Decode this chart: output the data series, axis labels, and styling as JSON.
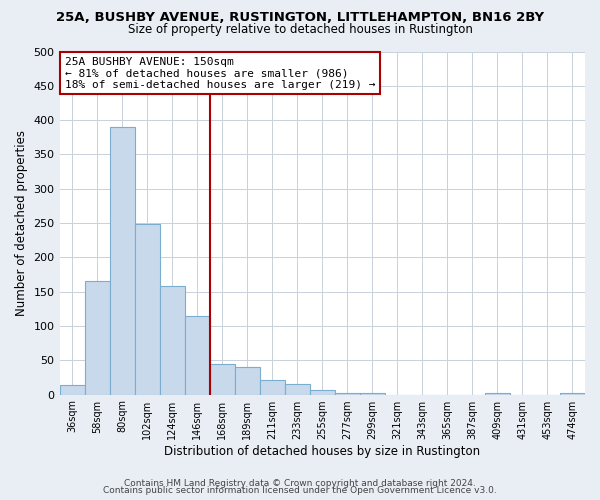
{
  "title": "25A, BUSHBY AVENUE, RUSTINGTON, LITTLEHAMPTON, BN16 2BY",
  "subtitle": "Size of property relative to detached houses in Rustington",
  "xlabel": "Distribution of detached houses by size in Rustington",
  "ylabel": "Number of detached properties",
  "bar_labels": [
    "36sqm",
    "58sqm",
    "80sqm",
    "102sqm",
    "124sqm",
    "146sqm",
    "168sqm",
    "189sqm",
    "211sqm",
    "233sqm",
    "255sqm",
    "277sqm",
    "299sqm",
    "321sqm",
    "343sqm",
    "365sqm",
    "387sqm",
    "409sqm",
    "431sqm",
    "453sqm",
    "474sqm"
  ],
  "bar_values": [
    14,
    165,
    390,
    248,
    158,
    115,
    45,
    40,
    21,
    16,
    7,
    3,
    2,
    0,
    0,
    0,
    0,
    2,
    0,
    0,
    2
  ],
  "bar_fill_color": "#c8d9ec",
  "bar_edge_color": "#7aadce",
  "ylim": [
    0,
    500
  ],
  "yticks": [
    0,
    50,
    100,
    150,
    200,
    250,
    300,
    350,
    400,
    450,
    500
  ],
  "vline_x": 5.5,
  "annotation_text_line1": "25A BUSHBY AVENUE: 150sqm",
  "annotation_text_line2": "← 81% of detached houses are smaller (986)",
  "annotation_text_line3": "18% of semi-detached houses are larger (219) →",
  "vline_color": "#aa0000",
  "annotation_box_edge_color": "#aa0000",
  "footer_line1": "Contains HM Land Registry data © Crown copyright and database right 2024.",
  "footer_line2": "Contains public sector information licensed under the Open Government Licence v3.0.",
  "background_color": "#e8eef4",
  "plot_bg_color": "#ffffff",
  "grid_color": "#c8d0da"
}
